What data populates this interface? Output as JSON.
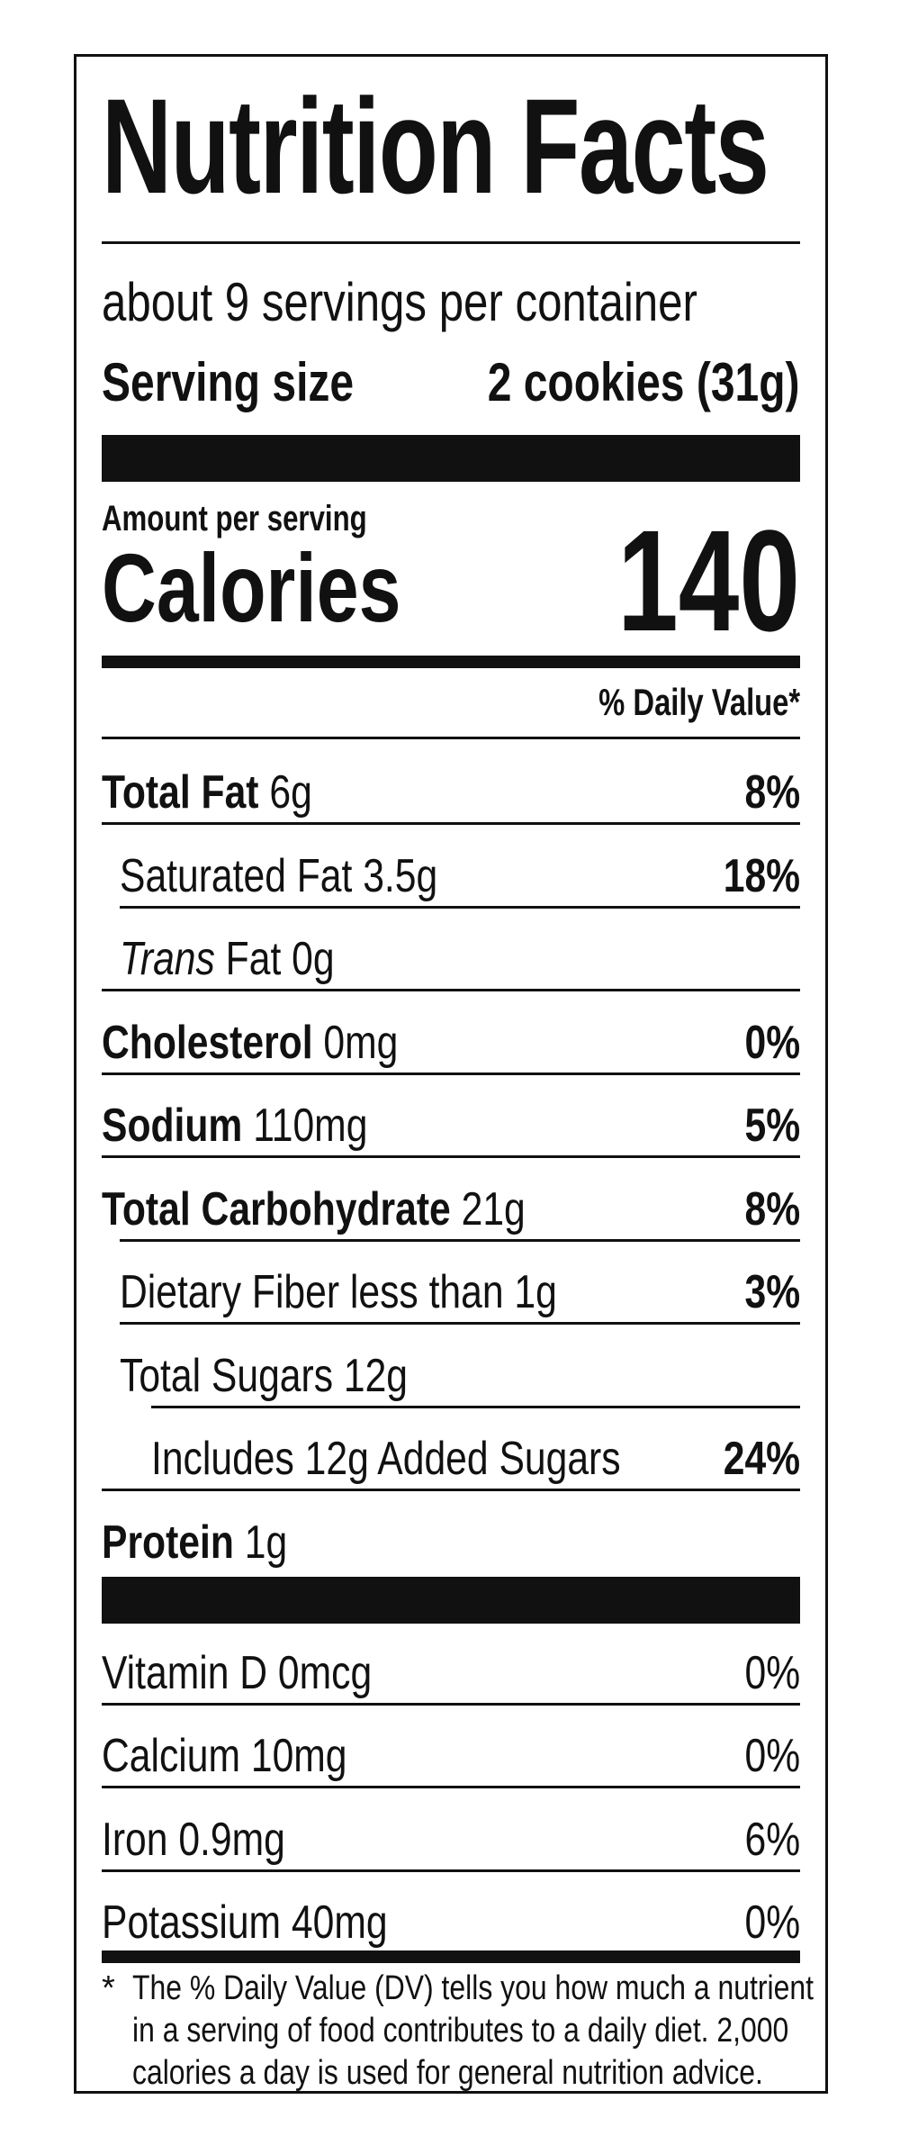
{
  "title": "Nutrition Facts",
  "servings_per_container": "about 9 servings per container",
  "serving_size": {
    "label": "Serving size",
    "value": "2 cookies (31g)"
  },
  "amount_per_serving": "Amount per serving",
  "calories": {
    "label": "Calories",
    "value": "140"
  },
  "daily_value_header": "% Daily Value*",
  "nutrients": [
    {
      "name": "Total Fat",
      "amount": " 6g",
      "dv": "8%"
    },
    {
      "name": "Saturated Fat 3.5g",
      "dv": "18%"
    },
    {
      "name": "Trans",
      "amount": " Fat 0g"
    },
    {
      "name": "Cholesterol",
      "amount": " 0mg",
      "dv": "0%"
    },
    {
      "name": "Sodium",
      "amount": " 110mg",
      "dv": "5%"
    },
    {
      "name": "Total Carbohydrate",
      "amount": " 21g",
      "dv": "8%"
    },
    {
      "name": "Dietary Fiber less than 1g",
      "dv": "3%"
    },
    {
      "name": "Total Sugars 12g"
    },
    {
      "name": "Includes 12g Added Sugars",
      "dv": "24%"
    },
    {
      "name": "Protein",
      "amount": " 1g"
    }
  ],
  "vitamins": [
    {
      "name": "Vitamin D 0mcg",
      "dv": "0%"
    },
    {
      "name": "Calcium 10mg",
      "dv": "0%"
    },
    {
      "name": "Iron 0.9mg",
      "dv": "6%"
    },
    {
      "name": "Potassium 40mg",
      "dv": "0%"
    }
  ],
  "footnote": {
    "star": "*",
    "lines": [
      "The % Daily Value (DV) tells you how much a nutrient",
      "in a serving of food contributes to a daily diet. 2,000",
      "calories a day is used for general nutrition advice."
    ]
  }
}
